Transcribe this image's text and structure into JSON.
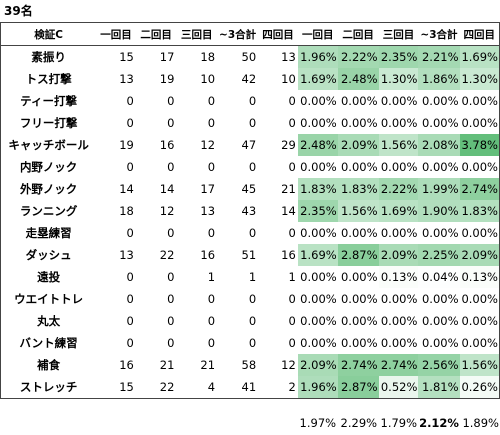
{
  "label": "39名",
  "table": {
    "header": [
      "検証C",
      "一回目",
      "二回目",
      "三回目",
      "~3合計",
      "四回目",
      "一回目",
      "二回目",
      "三回目",
      "~3合計",
      "四回目"
    ],
    "rows": [
      [
        "素振り",
        15,
        17,
        18,
        50,
        13,
        "1.96%",
        "2.22%",
        "2.35%",
        "2.21%",
        "1.69%"
      ],
      [
        "トス打撃",
        13,
        19,
        10,
        42,
        10,
        "1.69%",
        "2.48%",
        "1.30%",
        "1.86%",
        "1.30%"
      ],
      [
        "ティー打撃",
        0,
        0,
        0,
        0,
        0,
        "0.00%",
        "0.00%",
        "0.00%",
        "0.00%",
        "0.00%"
      ],
      [
        "フリー打撃",
        0,
        0,
        0,
        0,
        0,
        "0.00%",
        "0.00%",
        "0.00%",
        "0.00%",
        "0.00%"
      ],
      [
        "キャッチボール",
        19,
        16,
        12,
        47,
        29,
        "2.48%",
        "2.09%",
        "1.56%",
        "2.08%",
        "3.78%"
      ],
      [
        "内野ノック",
        0,
        0,
        0,
        0,
        0,
        "0.00%",
        "0.00%",
        "0.00%",
        "0.00%",
        "0.00%"
      ],
      [
        "外野ノック",
        14,
        14,
        17,
        45,
        21,
        "1.83%",
        "1.83%",
        "2.22%",
        "1.99%",
        "2.74%"
      ],
      [
        "ランニング",
        18,
        12,
        13,
        43,
        14,
        "2.35%",
        "1.56%",
        "1.69%",
        "1.90%",
        "1.83%"
      ],
      [
        "走塁練習",
        0,
        0,
        0,
        0,
        0,
        "0.00%",
        "0.00%",
        "0.00%",
        "0.00%",
        "0.00%"
      ],
      [
        "ダッシュ",
        13,
        22,
        16,
        51,
        16,
        "1.69%",
        "2.87%",
        "2.09%",
        "2.25%",
        "2.09%"
      ],
      [
        "遠投",
        0,
        0,
        1,
        1,
        1,
        "0.00%",
        "0.00%",
        "0.13%",
        "0.04%",
        "0.13%"
      ],
      [
        "ウエイトトレ",
        0,
        0,
        0,
        0,
        0,
        "0.00%",
        "0.00%",
        "0.00%",
        "0.00%",
        "0.00%"
      ],
      [
        "丸太",
        0,
        0,
        0,
        0,
        0,
        "0.00%",
        "0.00%",
        "0.00%",
        "0.00%",
        "0.00%"
      ],
      [
        "バント練習",
        0,
        0,
        0,
        0,
        0,
        "0.00%",
        "0.00%",
        "0.00%",
        "0.00%",
        "0.00%"
      ],
      [
        "補食",
        16,
        21,
        21,
        58,
        12,
        "2.09%",
        "2.74%",
        "2.74%",
        "2.56%",
        "1.56%"
      ],
      [
        "ストレッチ",
        15,
        22,
        4,
        41,
        2,
        "1.96%",
        "2.87%",
        "0.52%",
        "1.81%",
        "0.26%"
      ]
    ],
    "footer": [
      "1.97%",
      "2.29%",
      "1.79%",
      "2.12%",
      "1.89%"
    ],
    "footer_bold": [
      false,
      false,
      false,
      true,
      false
    ],
    "scale_color": "#63be7b"
  }
}
